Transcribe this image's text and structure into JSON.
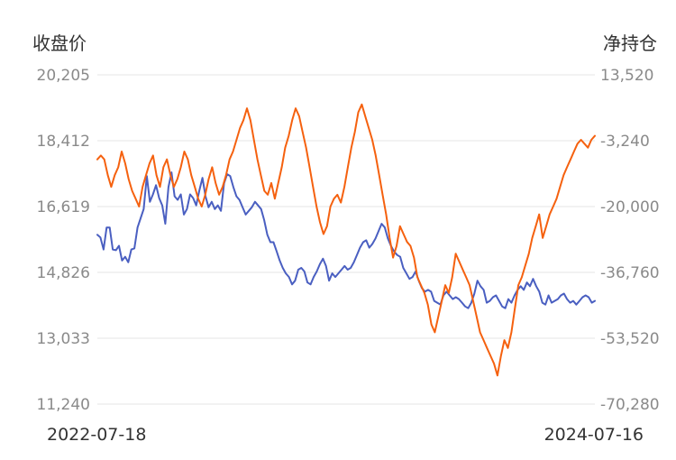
{
  "chart_data": {
    "type": "line",
    "left_axis_title": "收盘价",
    "right_axis_title": "净持仓",
    "left_ticks": [
      "20,205",
      "18,412",
      "16,619",
      "14,826",
      "13,033",
      "11,240"
    ],
    "right_ticks": [
      "13,520",
      "-3,240",
      "-20,000",
      "-36,760",
      "-53,520",
      "-70,280"
    ],
    "left_ylim": [
      11240,
      20205
    ],
    "right_ylim": [
      -70280,
      13520
    ],
    "x_start_label": "2022-07-18",
    "x_end_label": "2024-07-16",
    "grid": true,
    "series": [
      {
        "axis": "left",
        "color": "#4a5fc1",
        "values": [
          15850,
          15780,
          15450,
          16050,
          16050,
          15450,
          15430,
          15550,
          15150,
          15250,
          15100,
          15450,
          15480,
          16050,
          16300,
          16550,
          17450,
          16750,
          16950,
          17200,
          16850,
          16650,
          16150,
          17150,
          17550,
          16900,
          16800,
          16950,
          16400,
          16550,
          16950,
          16850,
          16650,
          17050,
          17400,
          16900,
          16600,
          16750,
          16550,
          16650,
          16500,
          17250,
          17500,
          17450,
          17150,
          16900,
          16800,
          16600,
          16400,
          16500,
          16600,
          16750,
          16650,
          16550,
          16250,
          15850,
          15650,
          15650,
          15400,
          15150,
          14950,
          14800,
          14700,
          14500,
          14600,
          14900,
          14950,
          14850,
          14550,
          14500,
          14700,
          14850,
          15050,
          15200,
          15000,
          14600,
          14800,
          14700,
          14800,
          14900,
          15000,
          14900,
          14950,
          15100,
          15300,
          15500,
          15650,
          15700,
          15500,
          15600,
          15750,
          15950,
          16150,
          16050,
          15750,
          15550,
          15400,
          15300,
          15250,
          14950,
          14800,
          14650,
          14700,
          14850,
          14600,
          14400,
          14300,
          14350,
          14300,
          14050,
          14000,
          13950,
          14200,
          14300,
          14200,
          14100,
          14150,
          14100,
          14000,
          13900,
          13850,
          14000,
          14250,
          14600,
          14450,
          14350,
          14000,
          14050,
          14150,
          14200,
          14050,
          13900,
          13850,
          14100,
          14000,
          14200,
          14350,
          14450,
          14350,
          14550,
          14450,
          14650,
          14450,
          14300,
          14000,
          13950,
          14200,
          14000,
          14050,
          14100,
          14200,
          14250,
          14100,
          14000,
          14050,
          13950,
          14050,
          14150,
          14200,
          14150,
          14000,
          14050
        ]
      },
      {
        "axis": "right",
        "color": "#f5610f",
        "values": [
          -8000,
          -7000,
          -8000,
          -12000,
          -15000,
          -12000,
          -10000,
          -6000,
          -9000,
          -13000,
          -16000,
          -18000,
          -20000,
          -15000,
          -12000,
          -9000,
          -7000,
          -12000,
          -15000,
          -10000,
          -8000,
          -12000,
          -15000,
          -13000,
          -10000,
          -6000,
          -8000,
          -12000,
          -15000,
          -18000,
          -20000,
          -17000,
          -13000,
          -10000,
          -14000,
          -17000,
          -15000,
          -12000,
          -8000,
          -6000,
          -3000,
          0,
          2000,
          5000,
          2000,
          -3000,
          -8000,
          -12000,
          -16000,
          -17000,
          -14000,
          -18000,
          -14000,
          -10000,
          -5000,
          -2000,
          2000,
          5000,
          3000,
          -1000,
          -5000,
          -10000,
          -15000,
          -20000,
          -24000,
          -27000,
          -25000,
          -20000,
          -18000,
          -17000,
          -19000,
          -15000,
          -10000,
          -5000,
          -1000,
          4000,
          6000,
          3000,
          0,
          -3000,
          -7000,
          -12000,
          -17000,
          -22000,
          -28000,
          -33000,
          -30000,
          -25000,
          -27000,
          -29000,
          -30000,
          -33000,
          -38000,
          -40000,
          -42000,
          -45000,
          -50000,
          -52000,
          -48000,
          -44000,
          -40000,
          -42000,
          -38000,
          -32000,
          -34000,
          -36000,
          -38000,
          -40000,
          -44000,
          -48000,
          -52000,
          -54000,
          -56000,
          -58000,
          -60000,
          -63000,
          -58000,
          -54000,
          -56000,
          -52000,
          -46000,
          -40000,
          -38000,
          -35000,
          -32000,
          -28000,
          -25000,
          -22000,
          -28000,
          -25000,
          -22000,
          -20000,
          -18000,
          -15000,
          -12000,
          -10000,
          -8000,
          -6000,
          -4000,
          -3000,
          -4000,
          -5000,
          -3000,
          -2000
        ]
      }
    ]
  }
}
